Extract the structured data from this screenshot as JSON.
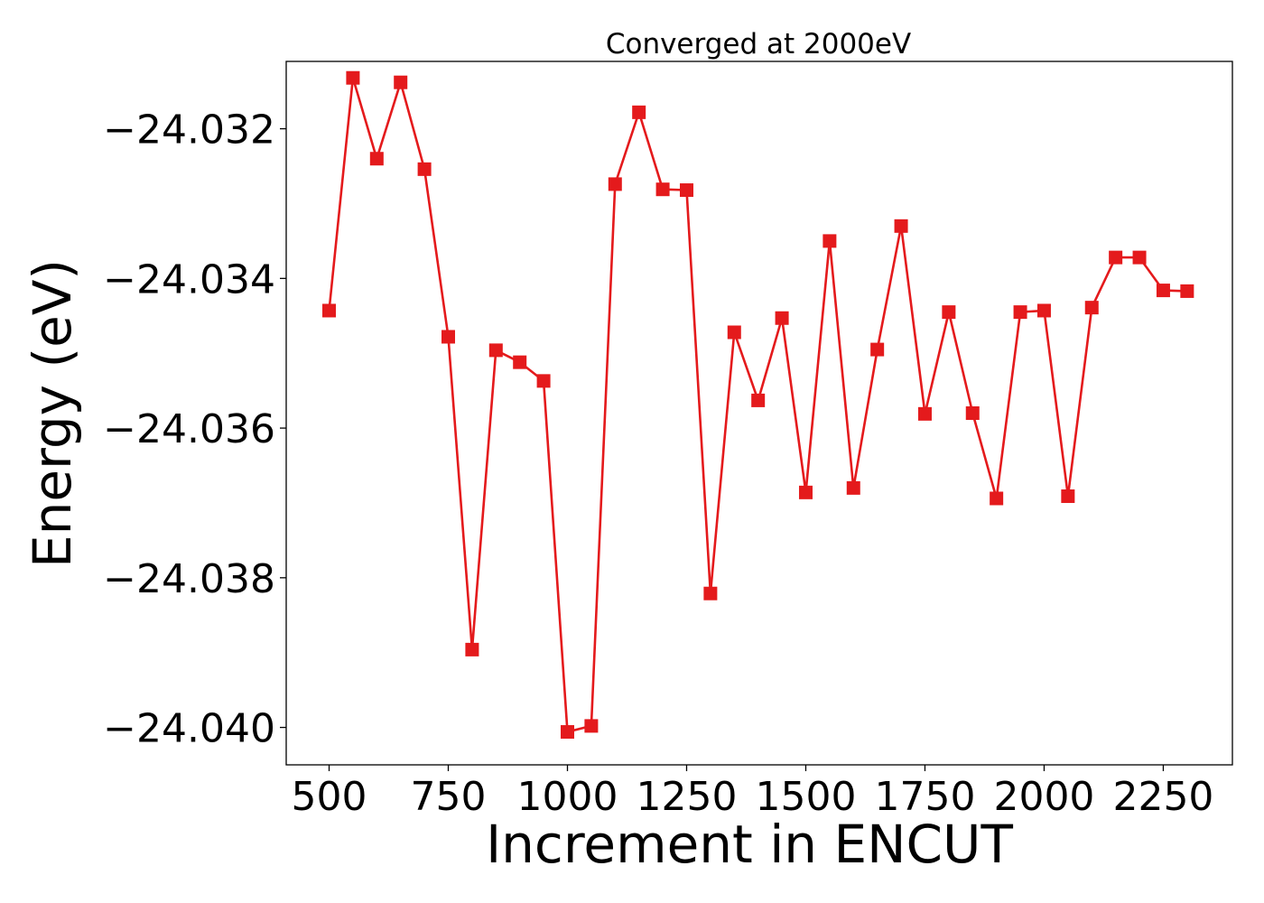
{
  "chart_data": {
    "type": "line",
    "title": "Converged at 2000eV",
    "xlabel": "Increment in ENCUT",
    "ylabel": "Energy (eV)",
    "xlim": [
      410,
      2395
    ],
    "ylim": [
      -24.0405,
      -24.0311
    ],
    "xticks": [
      500,
      750,
      1000,
      1250,
      1500,
      1750,
      2000,
      2250
    ],
    "xtick_labels": [
      "500",
      "750",
      "1000",
      "1250",
      "1500",
      "1750",
      "2000",
      "2250"
    ],
    "yticks": [
      -24.032,
      -24.034,
      -24.036,
      -24.038,
      -24.04
    ],
    "ytick_labels": [
      "−24.032",
      "−24.034",
      "−24.036",
      "−24.038",
      "−24.040"
    ],
    "grid": false,
    "legend": "none",
    "series": [
      {
        "color": "#e41a1c",
        "marker": "square",
        "x": [
          500,
          550,
          600,
          650,
          700,
          750,
          800,
          850,
          900,
          950,
          1000,
          1050,
          1100,
          1150,
          1200,
          1250,
          1300,
          1350,
          1400,
          1450,
          1500,
          1550,
          1600,
          1650,
          1700,
          1750,
          1800,
          1850,
          1900,
          1950,
          2000,
          2050,
          2100,
          2150,
          2200,
          2250,
          2300
        ],
        "y": [
          -24.03443,
          -24.03132,
          -24.0324,
          -24.03138,
          -24.03254,
          -24.03478,
          -24.03896,
          -24.03496,
          -24.03512,
          -24.03537,
          -24.04006,
          -24.03998,
          -24.03274,
          -24.03178,
          -24.03281,
          -24.03282,
          -24.03821,
          -24.03472,
          -24.03563,
          -24.03453,
          -24.03686,
          -24.0335,
          -24.0368,
          -24.03495,
          -24.0333,
          -24.03581,
          -24.03445,
          -24.0358,
          -24.03694,
          -24.03445,
          -24.03443,
          -24.03691,
          -24.03439,
          -24.03372,
          -24.03372,
          -24.03416,
          -24.03417
        ]
      }
    ]
  }
}
